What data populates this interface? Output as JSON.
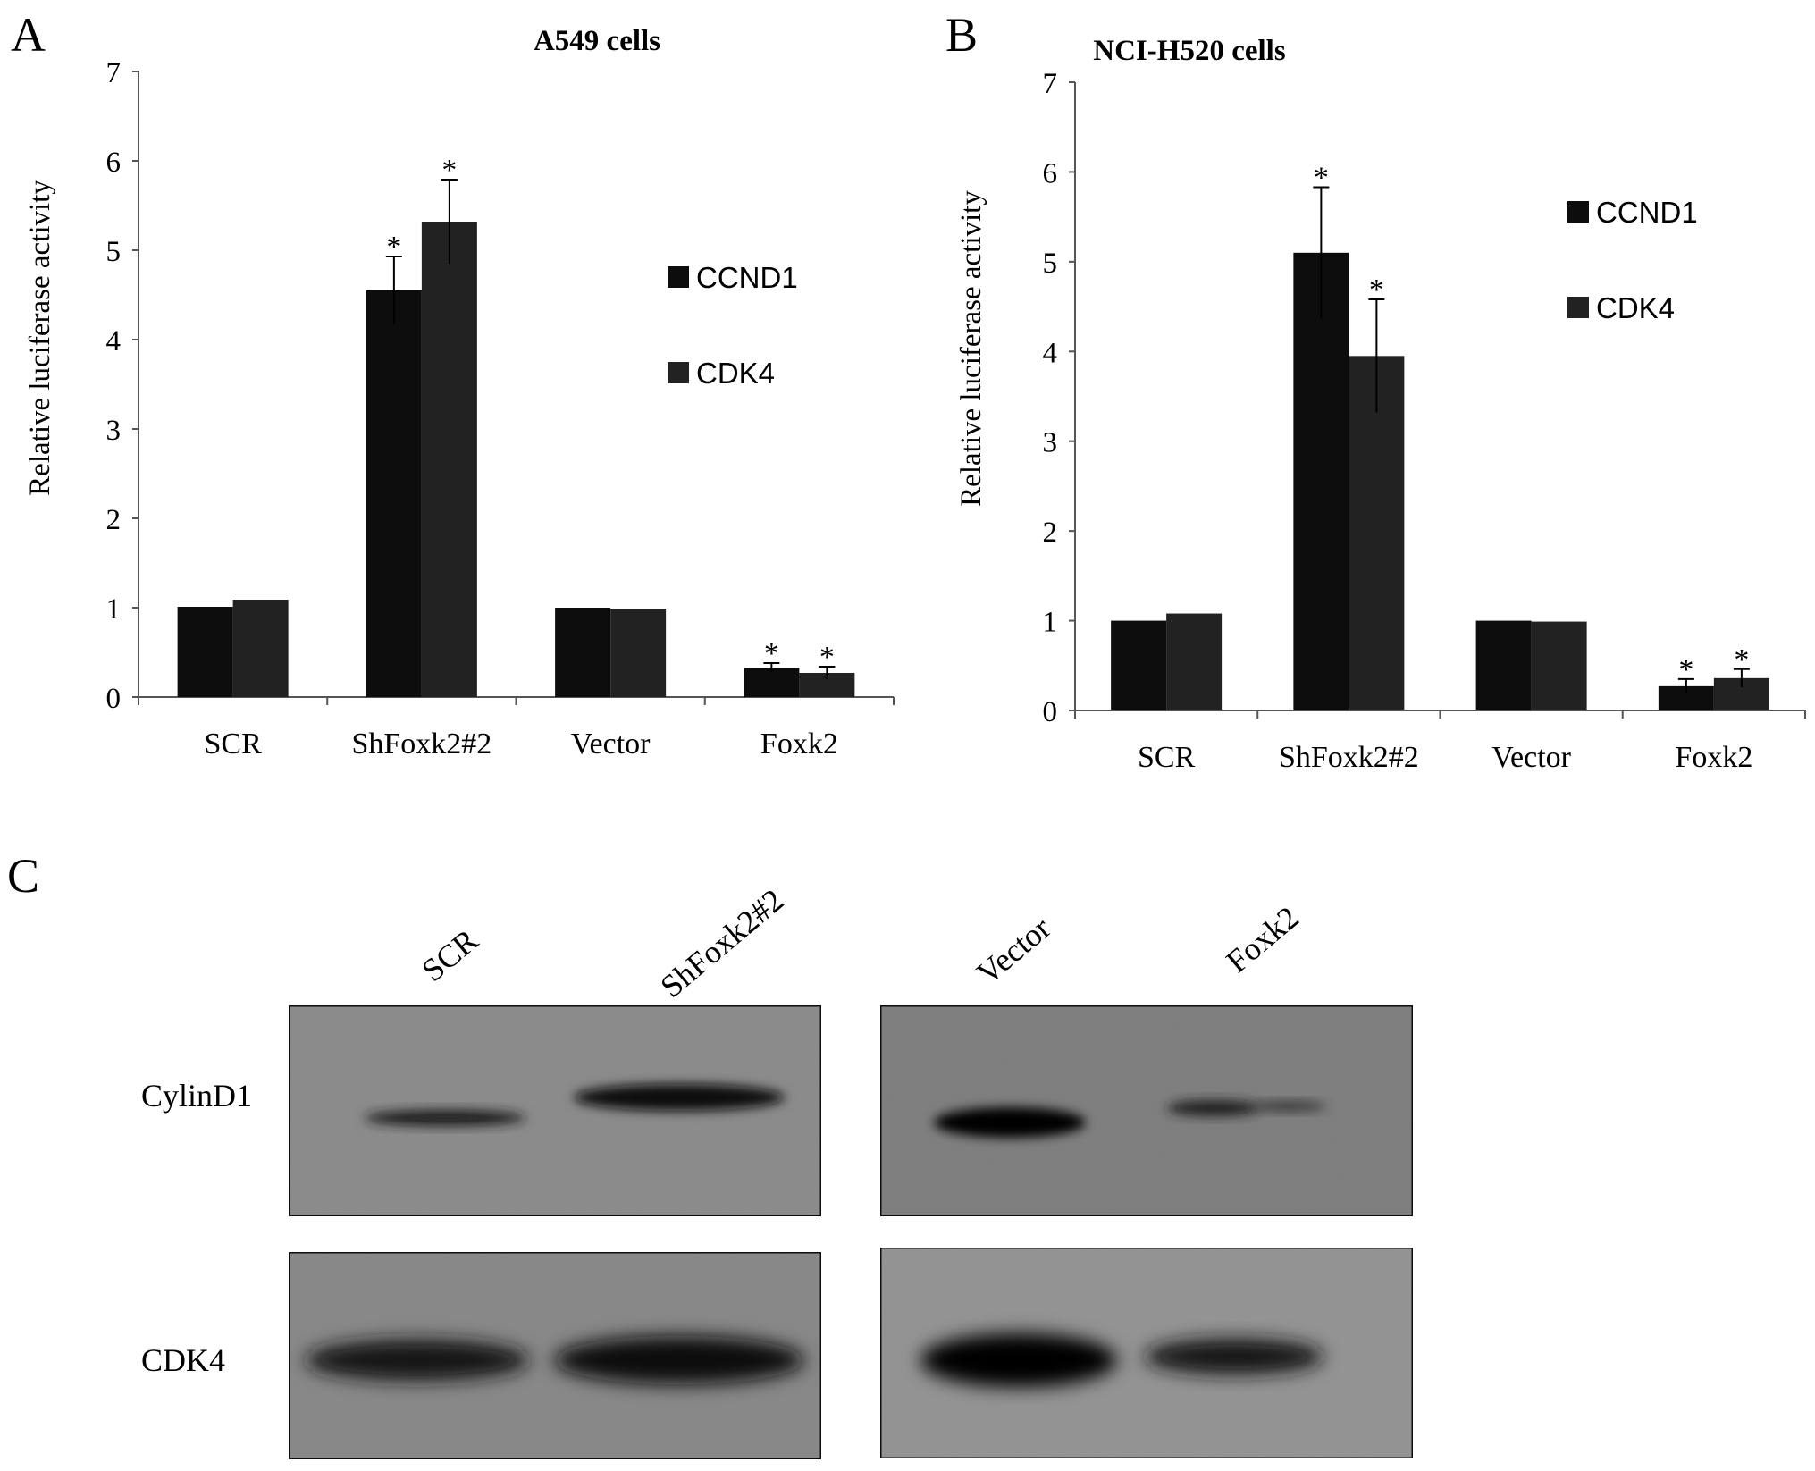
{
  "panels": {
    "a": {
      "letter": "A"
    },
    "b": {
      "letter": "B"
    },
    "c": {
      "letter": "C"
    }
  },
  "chart_data": [
    {
      "type": "bar",
      "panel": "A",
      "title": "A549 cells",
      "ylabel": "Relative luciferase activity",
      "xlabel": "",
      "ylim": [
        0,
        7
      ],
      "yticks": [
        0,
        1,
        2,
        3,
        4,
        5,
        6,
        7
      ],
      "grid": false,
      "legend_position": "right",
      "categories": [
        "SCR",
        "ShFoxk2#2",
        "Vector",
        "Foxk2"
      ],
      "series": [
        {
          "name": "CCND1",
          "color": "#0d0d0d",
          "values": [
            1.01,
            4.55,
            1.0,
            0.33
          ],
          "errors": [
            0.0,
            0.38,
            0.0,
            0.05
          ],
          "significant": [
            false,
            true,
            false,
            true
          ]
        },
        {
          "name": "CDK4",
          "color": "#222222",
          "values": [
            1.09,
            5.32,
            0.99,
            0.27
          ],
          "errors": [
            0.0,
            0.47,
            0.0,
            0.07
          ],
          "significant": [
            false,
            true,
            false,
            true
          ]
        }
      ],
      "significance_marker": "*"
    },
    {
      "type": "bar",
      "panel": "B",
      "title": "NCI-H520 cells",
      "ylabel": "Relative luciferase activity",
      "xlabel": "",
      "ylim": [
        0,
        7
      ],
      "yticks": [
        0,
        1,
        2,
        3,
        4,
        5,
        6,
        7
      ],
      "grid": false,
      "legend_position": "right",
      "categories": [
        "SCR",
        "ShFoxk2#2",
        "Vector",
        "Foxk2"
      ],
      "series": [
        {
          "name": "CCND1",
          "color": "#0d0d0d",
          "values": [
            1.0,
            5.1,
            1.0,
            0.27
          ],
          "errors": [
            0.0,
            0.73,
            0.0,
            0.08
          ],
          "significant": [
            false,
            true,
            false,
            true
          ]
        },
        {
          "name": "CDK4",
          "color": "#222222",
          "values": [
            1.08,
            3.95,
            0.99,
            0.36
          ],
          "errors": [
            0.0,
            0.63,
            0.0,
            0.1
          ],
          "significant": [
            false,
            true,
            false,
            true
          ]
        }
      ],
      "significance_marker": "*"
    }
  ],
  "blot": {
    "lanes_left": [
      "SCR",
      "ShFoxk2#2"
    ],
    "lanes_right": [
      "Vector",
      "Foxk2"
    ],
    "rows": [
      "CylinD1",
      "CDK4"
    ],
    "membrane_colors": {
      "left_top": "#8e8e8e",
      "left_bottom": "#8b8b8b",
      "right_top": "#818181",
      "right_bottom": "#969696"
    }
  }
}
